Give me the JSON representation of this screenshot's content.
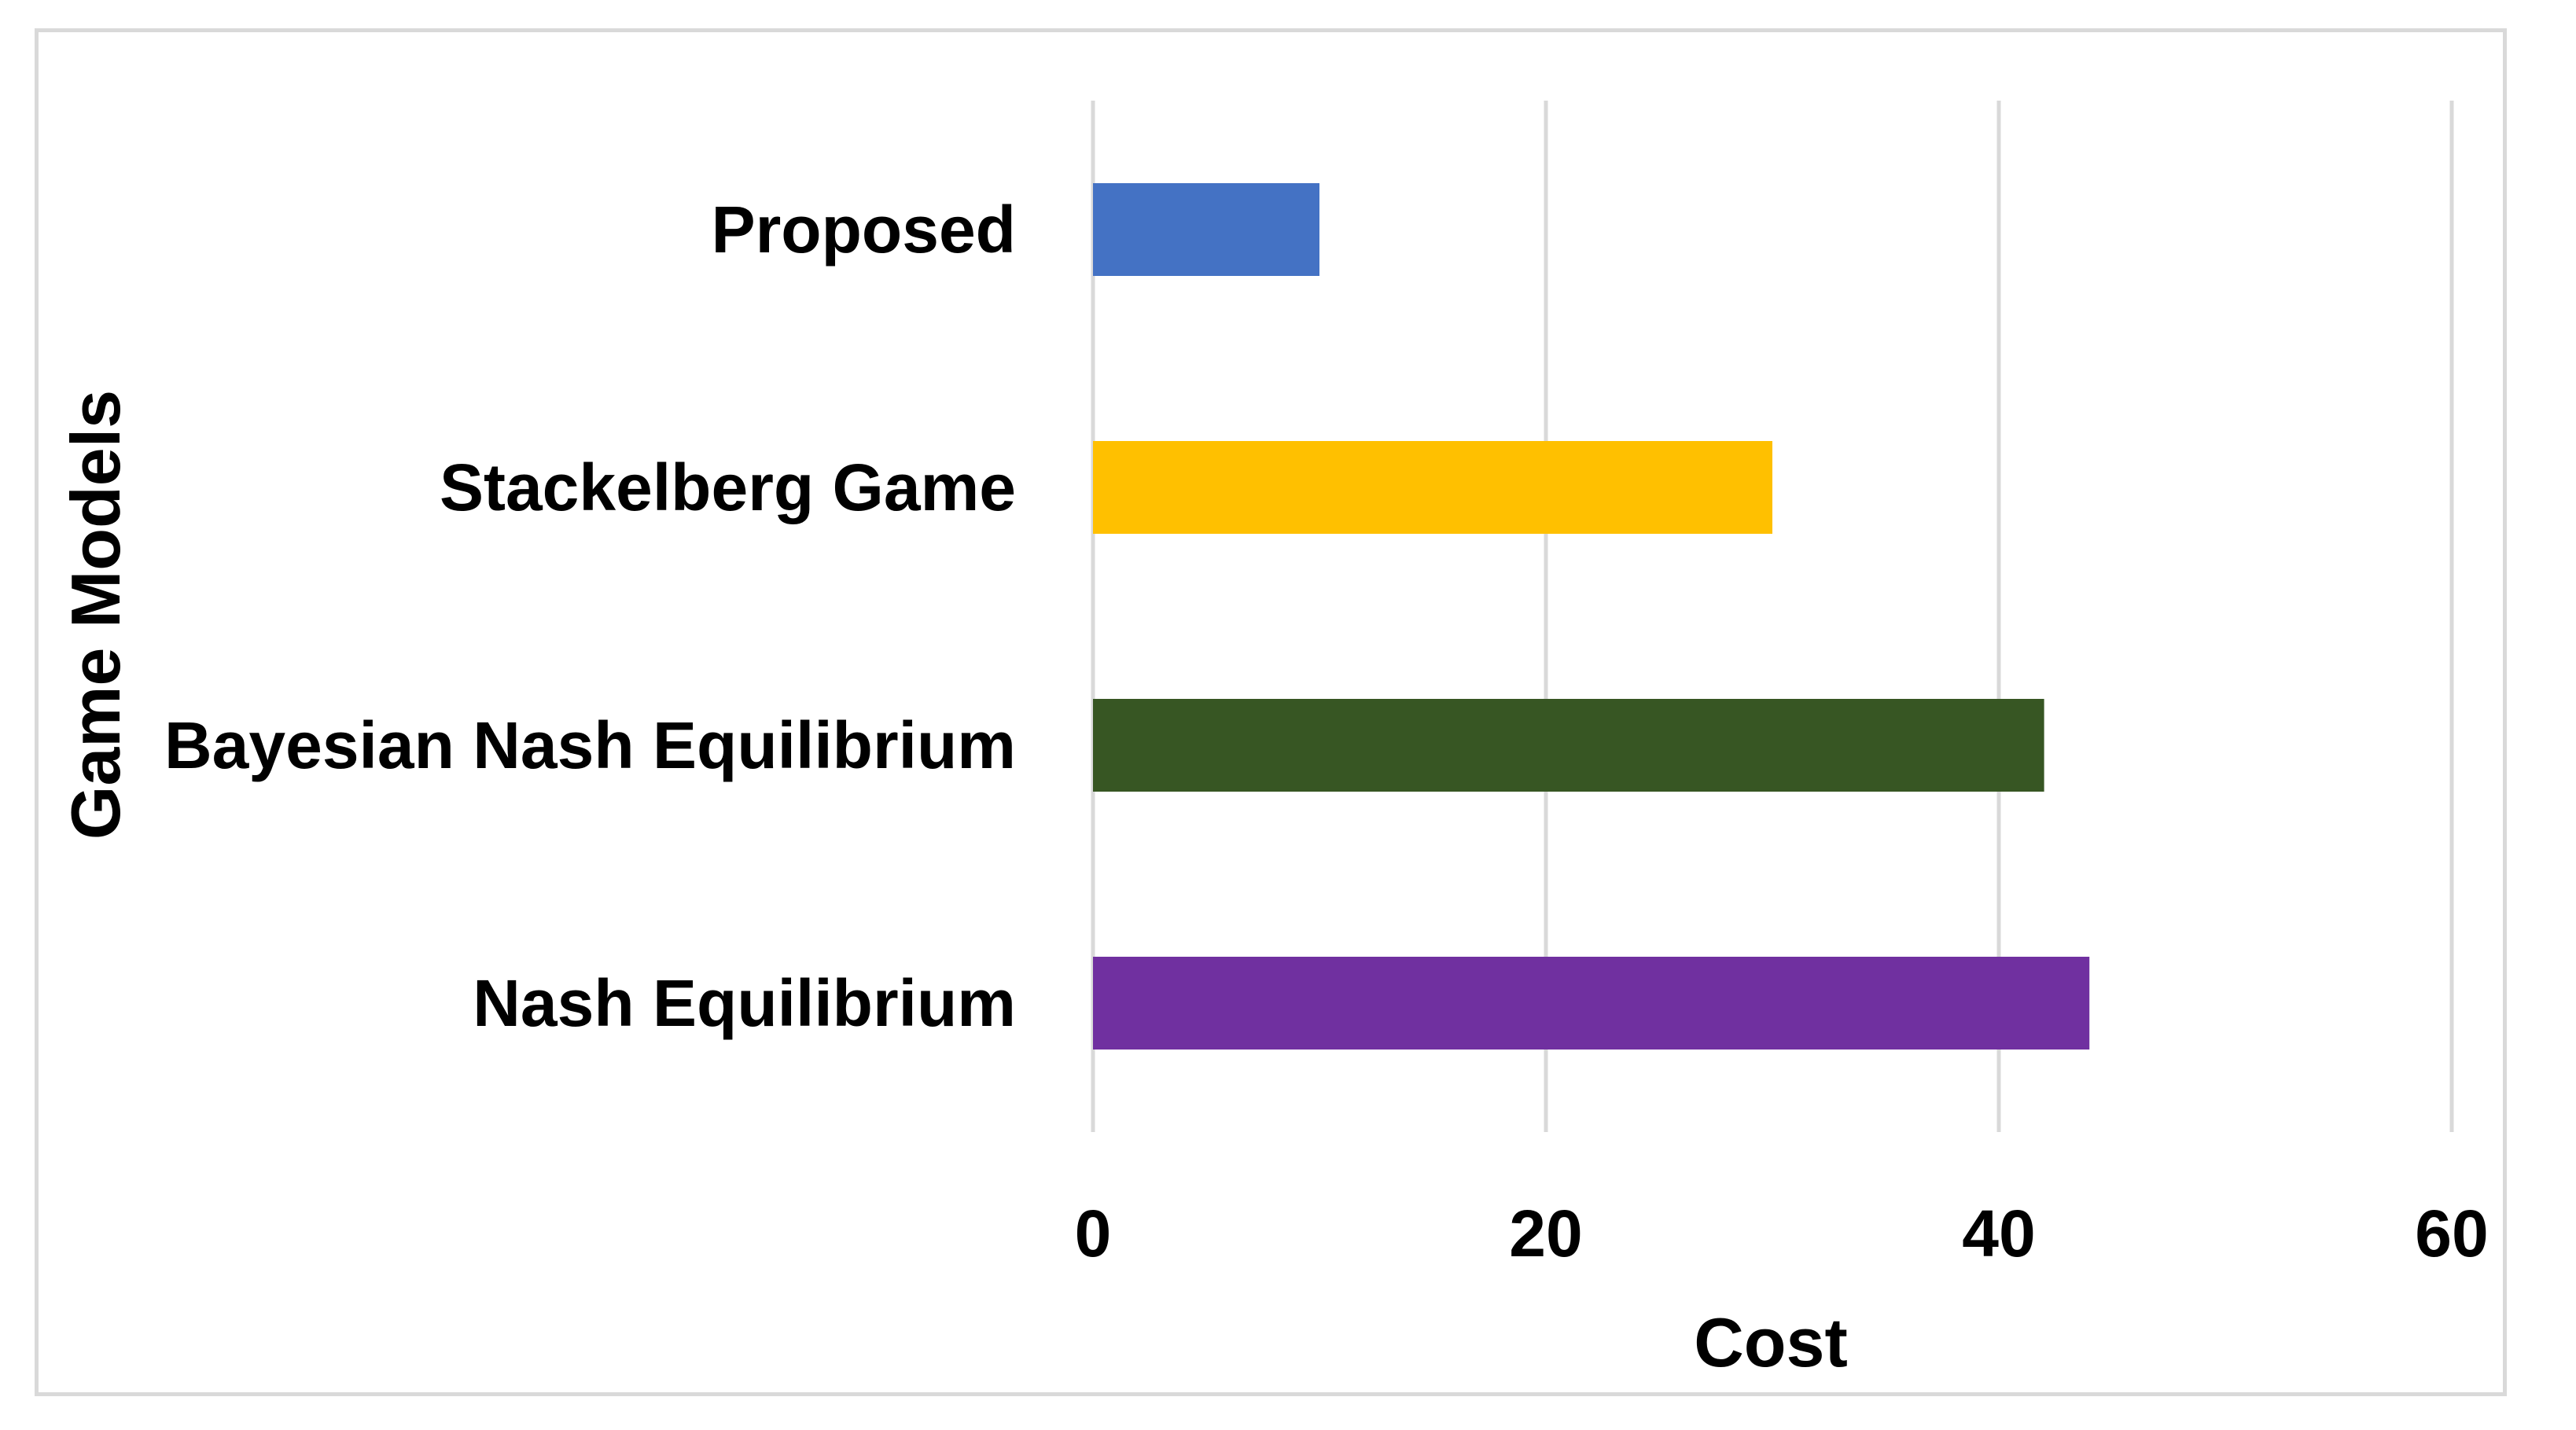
{
  "chart_data": {
    "type": "bar",
    "orientation": "horizontal",
    "categories": [
      "Proposed",
      "Stackelberg Game",
      "Bayesian Nash Equilibrium",
      "Nash Equilibrium"
    ],
    "values": [
      10,
      30,
      42,
      44
    ],
    "colors": [
      "#4472c4",
      "#ffc000",
      "#375623",
      "#7030a0"
    ],
    "xlabel": "Cost",
    "ylabel": "Game Models",
    "xlim": [
      0,
      60
    ],
    "xticks": [
      0,
      20,
      40,
      60
    ],
    "grid": "vertical",
    "legend": "none"
  }
}
